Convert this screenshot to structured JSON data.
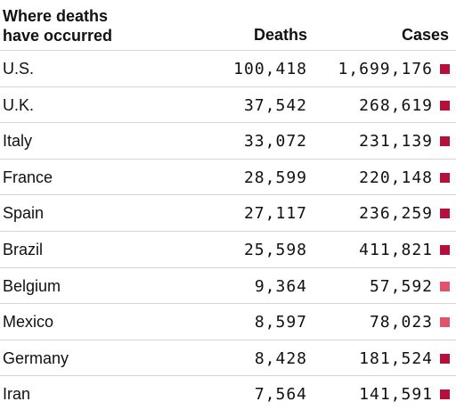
{
  "header": {
    "title": "Where deaths\nhave occurred",
    "deaths_label": "Deaths",
    "cases_label": "Cases"
  },
  "colors": {
    "marker_dark": "#b5103c",
    "marker_light": "#e3516a"
  },
  "rows": [
    {
      "country": "U.S.",
      "deaths": "100,418",
      "cases": "1,699,176",
      "marker": "marker_dark"
    },
    {
      "country": "U.K.",
      "deaths": "37,542",
      "cases": "268,619",
      "marker": "marker_dark"
    },
    {
      "country": "Italy",
      "deaths": "33,072",
      "cases": "231,139",
      "marker": "marker_dark"
    },
    {
      "country": "France",
      "deaths": "28,599",
      "cases": "220,148",
      "marker": "marker_dark"
    },
    {
      "country": "Spain",
      "deaths": "27,117",
      "cases": "236,259",
      "marker": "marker_dark"
    },
    {
      "country": "Brazil",
      "deaths": "25,598",
      "cases": "411,821",
      "marker": "marker_dark"
    },
    {
      "country": "Belgium",
      "deaths": "9,364",
      "cases": "57,592",
      "marker": "marker_light"
    },
    {
      "country": "Mexico",
      "deaths": "8,597",
      "cases": "78,023",
      "marker": "marker_light"
    },
    {
      "country": "Germany",
      "deaths": "8,428",
      "cases": "181,524",
      "marker": "marker_dark"
    },
    {
      "country": "Iran",
      "deaths": "7,564",
      "cases": "141,591",
      "marker": "marker_dark"
    }
  ]
}
